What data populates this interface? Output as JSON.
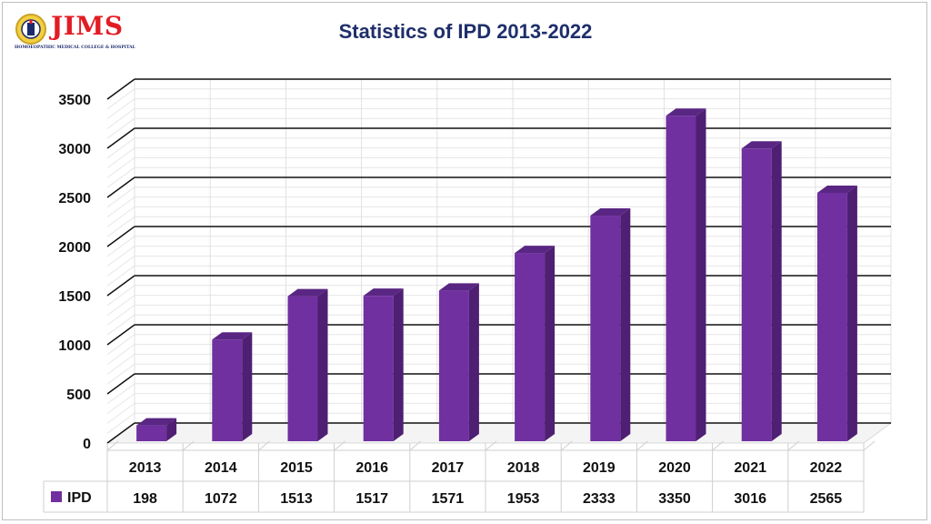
{
  "logo": {
    "name": "JIMS",
    "subtitle": "HOMOEOPATHIC MEDICAL COLLEGE & HOSPITAL"
  },
  "colors": {
    "bar_front": "#7030a0",
    "bar_side": "#4e1f72",
    "bar_top": "#5a2683",
    "title": "#1f2f6b",
    "brand_red": "#e31b23"
  },
  "chart_data": {
    "type": "bar",
    "title": "Statistics of IPD 2013-2022",
    "categories": [
      "2013",
      "2014",
      "2015",
      "2016",
      "2017",
      "2018",
      "2019",
      "2020",
      "2021",
      "2022"
    ],
    "series": [
      {
        "name": "IPD",
        "values": [
          198,
          1072,
          1513,
          1517,
          1571,
          1953,
          2333,
          3350,
          3016,
          2565
        ]
      }
    ],
    "ylim": [
      0,
      3500
    ],
    "yticks": [
      0,
      500,
      1000,
      1500,
      2000,
      2500,
      3000,
      3500
    ],
    "grid": true,
    "legend": "data-table",
    "xlabel": "",
    "ylabel": ""
  }
}
